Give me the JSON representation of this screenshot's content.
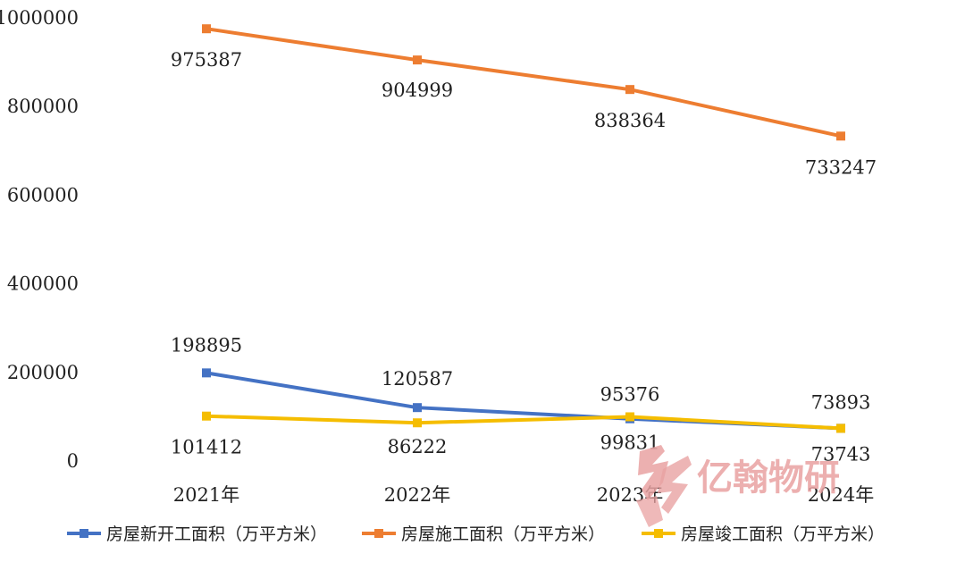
{
  "chart_data": {
    "type": "line",
    "categories": [
      "2021年",
      "2022年",
      "2023年",
      "2024年"
    ],
    "ylim": [
      0,
      1000000
    ],
    "yticks": [
      "0",
      "200000",
      "400000",
      "600000",
      "800000",
      "1000000"
    ],
    "grid": false,
    "legend_position": "bottom",
    "series": [
      {
        "name": "房屋新开工面积（万平方米）",
        "color": "#4472C4",
        "values": [
          198895,
          120587,
          95376,
          73893
        ],
        "labels": [
          "198895",
          "120587",
          "95376",
          "73893"
        ]
      },
      {
        "name": "房屋施工面积（万平方米）",
        "color": "#ED7D31",
        "values": [
          975387,
          904999,
          838364,
          733247
        ],
        "labels": [
          "975387",
          "904999",
          "838364",
          "733247"
        ]
      },
      {
        "name": "房屋竣工面积（万平方米）",
        "color": "#F5BD00",
        "values": [
          101412,
          86222,
          99831,
          73743
        ],
        "labels": [
          "101412",
          "86222",
          "99831",
          "73743"
        ]
      }
    ]
  },
  "watermark": {
    "text": "亿翰物研",
    "color": "#e9a2a2"
  }
}
